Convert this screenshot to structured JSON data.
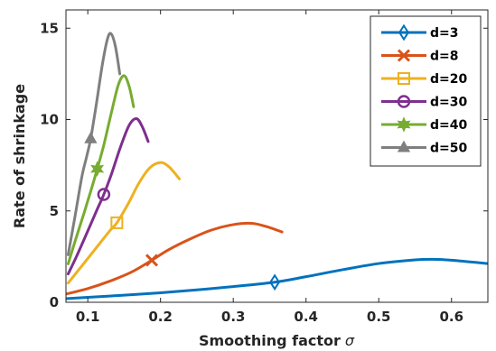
{
  "chart_data": {
    "type": "line",
    "xlabel": "Smoothing factor",
    "xlabel_symbol": "σ",
    "ylabel": "Rate of shrinkage",
    "xlim": [
      0.07,
      0.65
    ],
    "ylim": [
      0,
      16
    ],
    "xticks": [
      "0.1",
      "0.2",
      "0.3",
      "0.4",
      "0.5",
      "0.6"
    ],
    "xtick_values": [
      0.1,
      0.2,
      0.3,
      0.4,
      0.5,
      0.6
    ],
    "yticks": [
      "0",
      "5",
      "10",
      "15"
    ],
    "ytick_values": [
      0,
      5,
      10,
      15
    ],
    "grid": false,
    "legend_position": "top-right",
    "series": [
      {
        "name": "d=3",
        "color": "#0072BD",
        "marker": "diamond",
        "marker_at": [
          0.357,
          1.1
        ],
        "x": [
          0.07,
          0.1,
          0.15,
          0.2,
          0.25,
          0.3,
          0.357,
          0.4,
          0.45,
          0.5,
          0.55,
          0.575,
          0.6,
          0.65
        ],
        "y": [
          0.2,
          0.27,
          0.39,
          0.52,
          0.68,
          0.86,
          1.1,
          1.4,
          1.78,
          2.12,
          2.32,
          2.35,
          2.3,
          2.12
        ]
      },
      {
        "name": "d=8",
        "color": "#D95319",
        "marker": "x",
        "marker_at": [
          0.188,
          2.3
        ],
        "x": [
          0.07,
          0.1,
          0.13,
          0.16,
          0.188,
          0.21,
          0.24,
          0.27,
          0.3,
          0.325,
          0.345,
          0.367
        ],
        "y": [
          0.45,
          0.75,
          1.15,
          1.65,
          2.3,
          2.85,
          3.45,
          3.95,
          4.25,
          4.32,
          4.15,
          3.85
        ]
      },
      {
        "name": "d=20",
        "color": "#EDB120",
        "marker": "square",
        "marker_at": [
          0.14,
          4.35
        ],
        "x": [
          0.073,
          0.09,
          0.11,
          0.13,
          0.14,
          0.155,
          0.17,
          0.185,
          0.2,
          0.212,
          0.226
        ],
        "y": [
          1.05,
          1.9,
          2.9,
          3.9,
          4.35,
          5.35,
          6.5,
          7.35,
          7.65,
          7.4,
          6.75
        ]
      },
      {
        "name": "d=30",
        "color": "#7E2F8E",
        "marker": "circle",
        "marker_at": [
          0.122,
          5.9
        ],
        "x": [
          0.073,
          0.085,
          0.1,
          0.112,
          0.122,
          0.132,
          0.145,
          0.157,
          0.167,
          0.175,
          0.183
        ],
        "y": [
          1.55,
          2.55,
          3.9,
          5.0,
          5.9,
          6.95,
          8.5,
          9.7,
          10.05,
          9.6,
          8.8
        ]
      },
      {
        "name": "d=40",
        "color": "#77AC30",
        "marker": "hexagram",
        "marker_at": [
          0.113,
          7.3
        ],
        "x": [
          0.073,
          0.083,
          0.095,
          0.105,
          0.113,
          0.122,
          0.132,
          0.142,
          0.15,
          0.157,
          0.163
        ],
        "y": [
          2.1,
          3.4,
          4.9,
          6.2,
          7.3,
          8.6,
          10.3,
          11.9,
          12.4,
          11.8,
          10.7
        ]
      },
      {
        "name": "d=50",
        "color": "#7F7F7F",
        "marker": "triangle",
        "marker_at": [
          0.104,
          8.95
        ],
        "x": [
          0.073,
          0.082,
          0.092,
          0.098,
          0.104,
          0.112,
          0.12,
          0.127,
          0.132,
          0.138,
          0.144
        ],
        "y": [
          2.6,
          4.6,
          6.9,
          7.9,
          8.95,
          10.9,
          13.0,
          14.4,
          14.7,
          14.0,
          12.5
        ]
      }
    ]
  }
}
